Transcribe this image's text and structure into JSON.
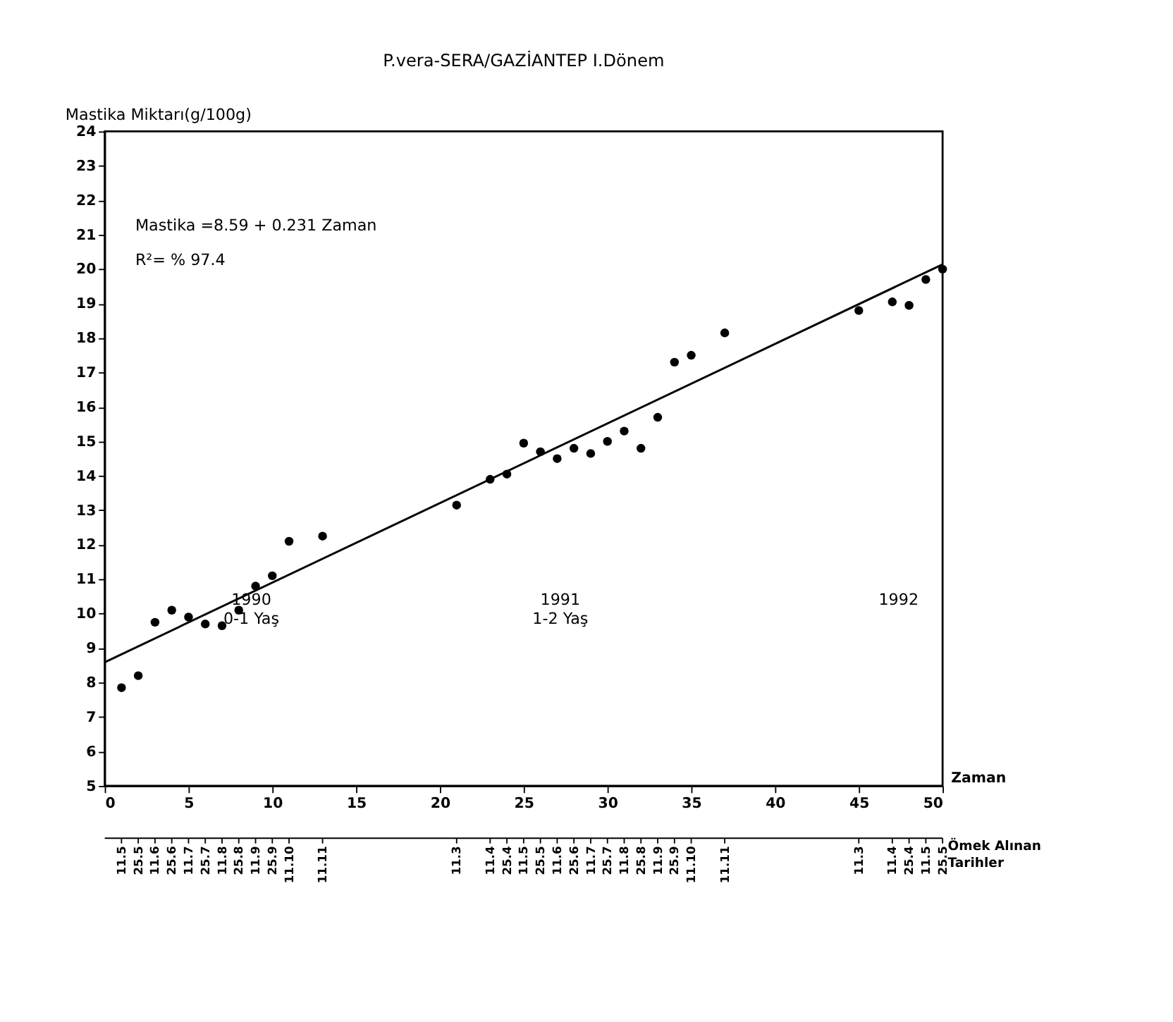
{
  "chart_data": {
    "type": "scatter",
    "title": "P.vera-SERA/GAZİANTEP I.Dönem",
    "ylabel": "Mastika Miktarı(g/100g)",
    "xlabel": "Zaman",
    "x2label": "Ömek Alınan Tarihler",
    "annotations": [
      "Mastika =8.59 + 0.231 Zaman",
      "R²= % 97.4",
      "1990\n0-1 Yaş",
      "1991\n1-2 Yaş",
      "1992",
      {
        "text": "11.5",
        "x": 1
      },
      {
        "text": "25.5",
        "x": 2
      },
      {
        "text": "11.6",
        "x": 3
      },
      {
        "text": "25.6",
        "x": 4
      },
      {
        "text": "11.7",
        "x": 5
      },
      {
        "text": "25.7",
        "x": 6
      },
      {
        "text": "11.8",
        "x": 7
      },
      {
        "text": "25.8",
        "x": 8
      },
      {
        "text": "11.9",
        "x": 9
      },
      {
        "text": "25.9",
        "x": 10
      },
      {
        "text": "11.10",
        "x": 11
      },
      {
        "text": "11.11",
        "x": 13
      },
      {
        "text": "11.3",
        "x": 21
      },
      {
        "text": "11.4",
        "x": 23
      },
      {
        "text": "25.4",
        "x": 24
      },
      {
        "text": "11.5",
        "x": 25
      },
      {
        "text": "25.5",
        "x": 26
      },
      {
        "text": "11.6",
        "x": 27
      },
      {
        "text": "25.6",
        "x": 28
      },
      {
        "text": "11.7",
        "x": 29
      },
      {
        "text": "25.7",
        "x": 30
      },
      {
        "text": "11.8",
        "x": 31
      },
      {
        "text": "25.8",
        "x": 32
      },
      {
        "text": "11.9",
        "x": 33
      },
      {
        "text": "25.9",
        "x": 34
      },
      {
        "text": "11.10",
        "x": 35
      },
      {
        "text": "11.11",
        "x": 37
      },
      {
        "text": "11.3",
        "x": 45
      },
      {
        "text": "11.4",
        "x": 47
      },
      {
        "text": "25.4",
        "x": 48
      },
      {
        "text": "11.5",
        "x": 49
      },
      {
        "text": "25.5",
        "x": 50
      }
    ],
    "series": [
      {
        "color": "#000000",
        "marker": "circle",
        "x": [
          1,
          2,
          3,
          4,
          5,
          6,
          7,
          8,
          9,
          10,
          11,
          13,
          21,
          23,
          24,
          25,
          26,
          27,
          28,
          29,
          30,
          31,
          32,
          33,
          34,
          35,
          37,
          45,
          47,
          48,
          49,
          50
        ],
        "values": [
          7.85,
          8.2,
          9.75,
          10.1,
          9.9,
          9.7,
          9.65,
          10.1,
          10.8,
          11.1,
          12.1,
          12.25,
          13.15,
          13.9,
          14.05,
          14.95,
          14.7,
          14.5,
          14.8,
          14.65,
          15.0,
          15.3,
          14.8,
          15.7,
          17.3,
          17.5,
          18.15,
          18.8,
          19.05,
          18.95,
          19.7,
          20.0
        ]
      },
      {
        "type": "line",
        "marker": "none",
        "color": "#000000",
        "x": [
          0,
          50
        ],
        "values": [
          8.59,
          20.14
        ]
      }
    ],
    "xlim": [
      0,
      50
    ],
    "xticks": [
      0,
      5,
      10,
      15,
      20,
      25,
      30,
      35,
      40,
      45,
      50
    ],
    "ylim": [
      5,
      24
    ],
    "yticks": [
      5,
      6,
      7,
      8,
      9,
      10,
      11,
      12,
      13,
      14,
      15,
      16,
      17,
      18,
      19,
      20,
      21,
      22,
      23,
      24
    ],
    "grid": false,
    "line_style": "solid"
  }
}
